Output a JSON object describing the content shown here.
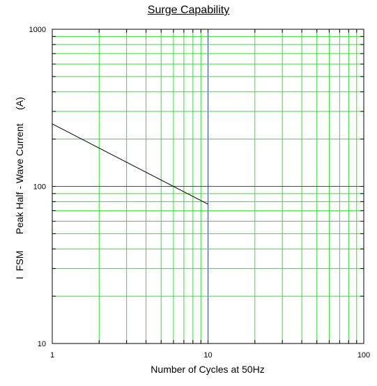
{
  "chart_data": {
    "type": "line",
    "title": "Surge Capability",
    "xlabel": "Number of Cycles at 50Hz",
    "ylabel": "I  FSM      Peak Half - Wave Current     (A)",
    "x_scale": "log",
    "y_scale": "log",
    "xlim": [
      1,
      100
    ],
    "ylim": [
      10,
      1000
    ],
    "x_ticks": [
      "1",
      "10",
      "100"
    ],
    "y_ticks": [
      "10",
      "100",
      "1000"
    ],
    "grid": true,
    "grid_color": "#33dd33",
    "highlight_color": "#3344bb",
    "highlight_lines": {
      "x": 10,
      "y": 100
    },
    "series": [
      {
        "color": "#000000",
        "x": [
          1,
          10
        ],
        "y": [
          250,
          77
        ]
      }
    ]
  }
}
